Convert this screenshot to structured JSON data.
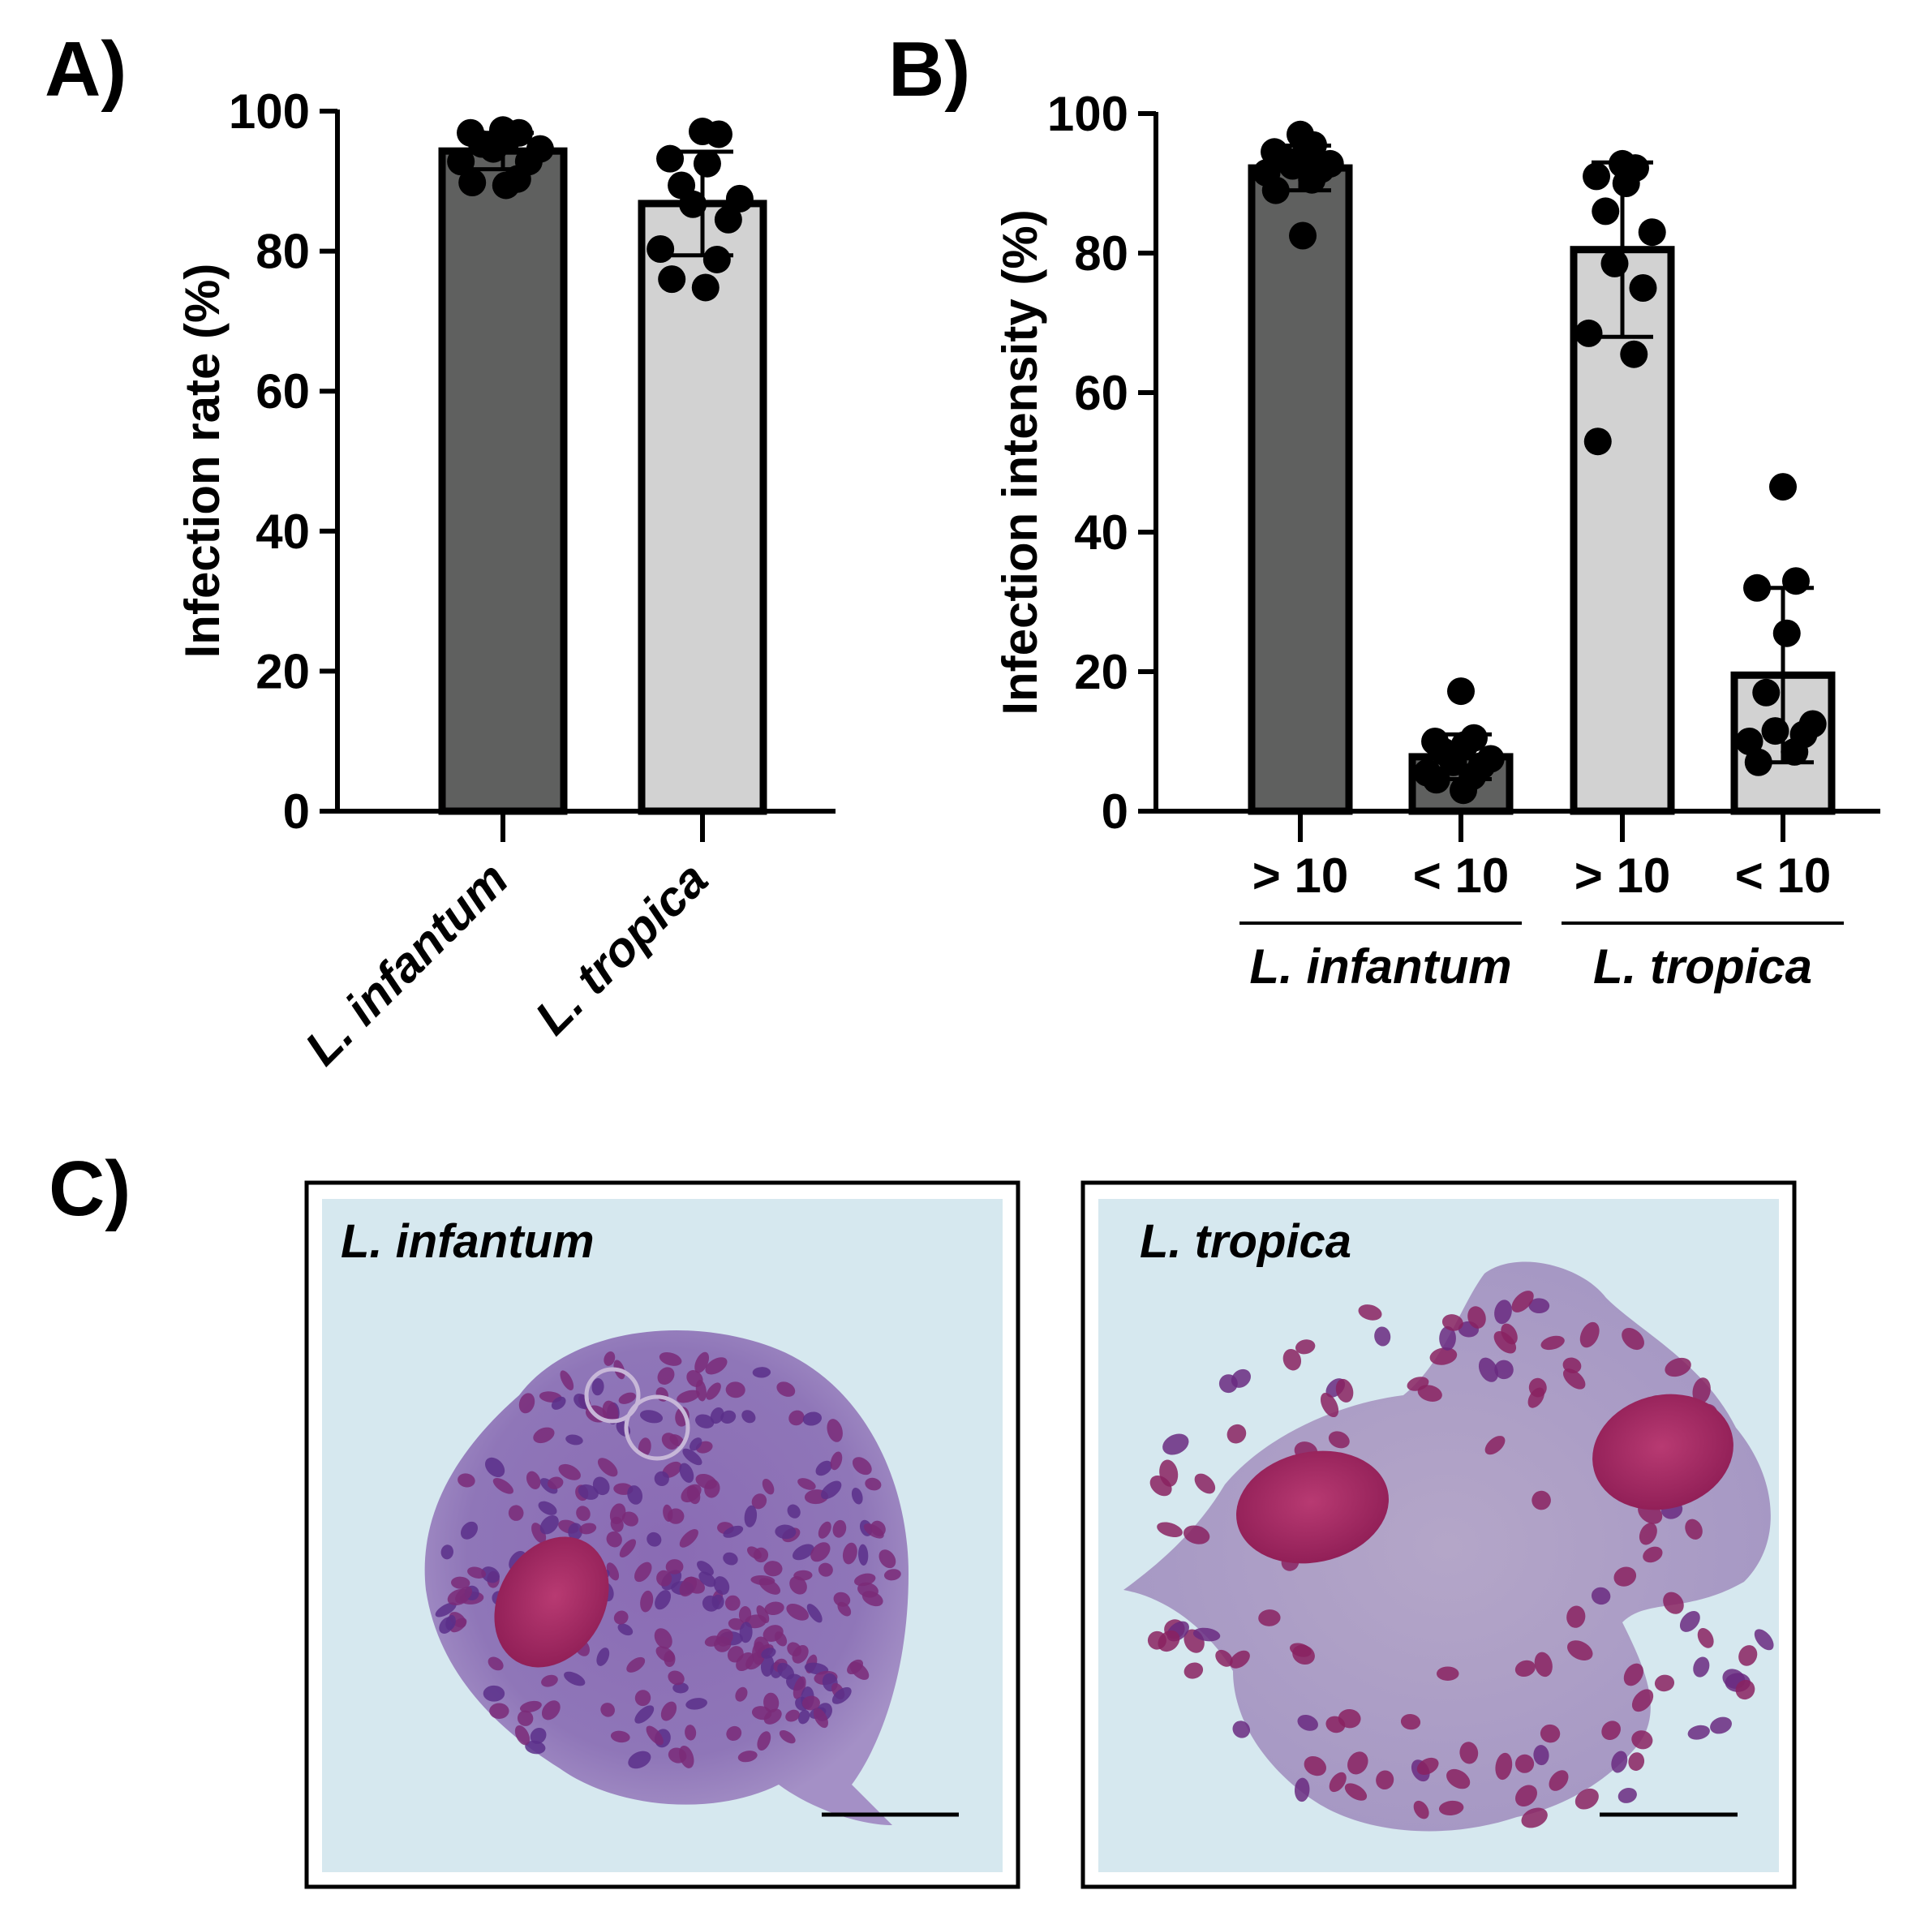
{
  "panels": {
    "a_label": "A)",
    "b_label": "B)",
    "c_label": "C)"
  },
  "chart_data": [
    {
      "type": "bar",
      "panel": "A",
      "title": "",
      "xlabel": "",
      "ylabel": "Infection rate (%)",
      "ylim": [
        0,
        100
      ],
      "yticks": [
        0,
        20,
        40,
        60,
        80,
        100
      ],
      "categories": [
        "L. infantum",
        "L. tropica"
      ],
      "values": [
        94.3,
        86.8
      ],
      "error": [
        2.6,
        7.4
      ],
      "colors": [
        "#5f605f",
        "#d2d2d2"
      ],
      "points": [
        [
          97.3,
          96.9,
          96.9,
          96.1,
          95.3,
          94.6,
          94.6,
          92.8,
          92.8,
          90.3,
          89.8,
          89.4
        ],
        [
          97.1,
          96.7,
          93.2,
          92.5,
          89.4,
          87.5,
          86.7,
          84.5,
          80.3,
          78.8,
          76.0,
          74.8
        ]
      ]
    },
    {
      "type": "bar",
      "panel": "B",
      "title": "",
      "xlabel": "",
      "ylabel": "Infection intensity (%)",
      "ylim": [
        0,
        100
      ],
      "yticks": [
        0,
        20,
        40,
        60,
        80,
        100
      ],
      "categories": [
        "> 10",
        "< 10",
        "> 10",
        "< 10"
      ],
      "groups": [
        {
          "label": "L. infantum",
          "members": [
            0,
            1
          ]
        },
        {
          "label": "L. tropica",
          "members": [
            2,
            3
          ]
        }
      ],
      "values": [
        92.2,
        7.8,
        80.5,
        19.5
      ],
      "error": [
        3.2,
        3.2,
        12.5,
        12.5
      ],
      "colors": [
        "#5f605f",
        "#5f605f",
        "#d2d2d2",
        "#d2d2d2"
      ],
      "points": [
        [
          97.0,
          95.5,
          94.5,
          94.0,
          93.5,
          92.8,
          92.5,
          92.0,
          91.5,
          90.5,
          89.0,
          82.5
        ],
        [
          17.2,
          10.5,
          10.0,
          9.5,
          8.5,
          7.5,
          7.0,
          6.5,
          5.5,
          5.0,
          4.5,
          3.0
        ],
        [
          92.8,
          92.2,
          91.0,
          90.0,
          86.0,
          83.0,
          78.5,
          75.0,
          68.5,
          65.5,
          53.0
        ],
        [
          46.5,
          33.0,
          32.0,
          25.5,
          17.0,
          12.5,
          11.5,
          11.0,
          10.0,
          8.5,
          7.0
        ]
      ]
    }
  ],
  "micrographs": [
    {
      "label": "L. infantum"
    },
    {
      "label": "L. tropica"
    }
  ]
}
